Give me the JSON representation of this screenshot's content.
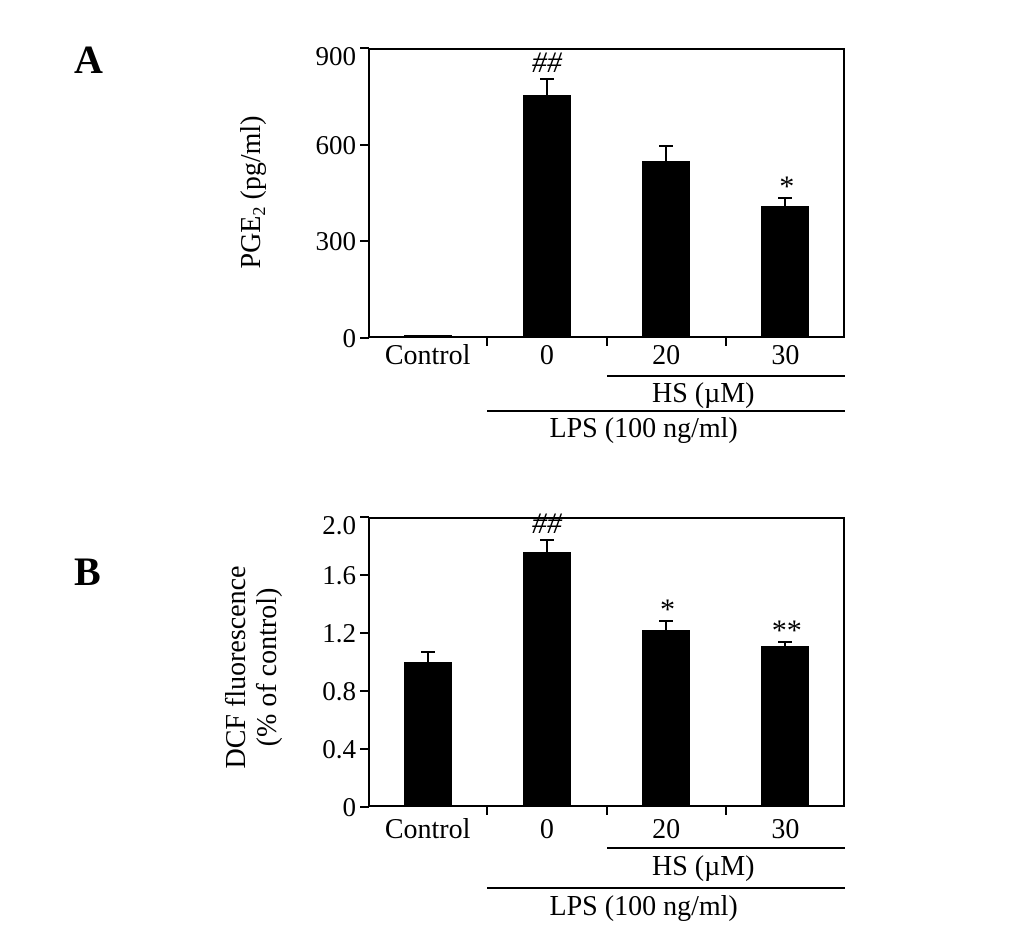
{
  "colors": {
    "background": "#ffffff",
    "bar": "#000000",
    "axis": "#000000",
    "text": "#000000"
  },
  "chart_data": [
    {
      "panel": "A",
      "type": "bar",
      "categories": [
        "Control",
        "0",
        "20",
        "30"
      ],
      "values": [
        8,
        755,
        550,
        410
      ],
      "errors_plus": [
        0,
        50,
        45,
        25
      ],
      "significance": [
        "",
        "##",
        "",
        "*"
      ],
      "ylabel": "PGE2 (pg/ml)",
      "ylabel_lines": [
        [
          {
            "text": "PGE"
          },
          {
            "text": "2",
            "sub": true
          },
          {
            "text": " (pg/ml)"
          }
        ]
      ],
      "ylim": [
        0,
        900
      ],
      "yticks": [
        0,
        300,
        600,
        900
      ],
      "ytick_labels": [
        "0",
        "300",
        "600",
        "900"
      ],
      "grid": false,
      "group_lines": [
        {
          "label": "HS (µM)",
          "start_category_index": 2
        },
        {
          "label": "LPS (100 ng/ml)",
          "start_category_index": 1
        }
      ]
    },
    {
      "panel": "B",
      "type": "bar",
      "categories": [
        "Control",
        "0",
        "20",
        "30"
      ],
      "values": [
        1.0,
        1.76,
        1.22,
        1.11
      ],
      "errors_plus": [
        0.07,
        0.08,
        0.06,
        0.03
      ],
      "significance": [
        "",
        "##",
        "*",
        "**"
      ],
      "ylabel": "DCF fluorescence (% of control)",
      "ylabel_lines": [
        [
          {
            "text": "DCF fluorescence"
          }
        ],
        [
          {
            "text": "(% of control)"
          }
        ]
      ],
      "ylim": [
        0,
        2.0
      ],
      "yticks": [
        0,
        0.4,
        0.8,
        1.2,
        1.6,
        2.0
      ],
      "ytick_labels": [
        "0",
        "0.4",
        "0.8",
        "1.2",
        "1.6",
        "2.0"
      ],
      "grid": false,
      "group_lines": [
        {
          "label": "HS (µM)",
          "start_category_index": 2
        },
        {
          "label": "LPS (100 ng/ml)",
          "start_category_index": 1
        }
      ]
    }
  ]
}
